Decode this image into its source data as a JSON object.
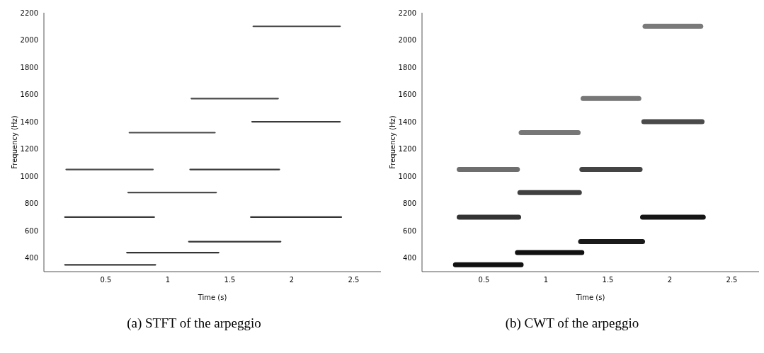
{
  "chart_data": [
    {
      "type": "line",
      "title": "(a) STFT of the arpeggio",
      "xlabel": "Time (s)",
      "ylabel": "Frequency (Hz)",
      "xlim": [
        0,
        2.72
      ],
      "ylim": [
        300,
        2200
      ],
      "xticks": [
        0.5,
        1,
        1.5,
        2,
        2.5
      ],
      "yticks": [
        400,
        600,
        800,
        1000,
        1200,
        1400,
        1600,
        1800,
        2000,
        2200
      ],
      "grid": false,
      "legend": false,
      "marker": "none",
      "line_style": "solid",
      "series": [
        {
          "color": "#3a3a3a",
          "x": [
            0.17,
            0.9
          ],
          "values": [
            350,
            350
          ]
        },
        {
          "color": "#3a3a3a",
          "x": [
            0.17,
            0.89
          ],
          "values": [
            700,
            700
          ]
        },
        {
          "color": "#4a4a4a",
          "x": [
            0.18,
            0.88
          ],
          "values": [
            1050,
            1050
          ]
        },
        {
          "color": "#333333",
          "x": [
            0.67,
            1.41
          ],
          "values": [
            440,
            440
          ]
        },
        {
          "color": "#3a3a3a",
          "x": [
            0.68,
            1.39
          ],
          "values": [
            880,
            880
          ]
        },
        {
          "color": "#4a4a4a",
          "x": [
            0.69,
            1.38
          ],
          "values": [
            1320,
            1320
          ]
        },
        {
          "color": "#333333",
          "x": [
            1.17,
            1.91
          ],
          "values": [
            520,
            520
          ]
        },
        {
          "color": "#3a3a3a",
          "x": [
            1.18,
            1.9
          ],
          "values": [
            1050,
            1050
          ]
        },
        {
          "color": "#4a4a4a",
          "x": [
            1.19,
            1.89
          ],
          "values": [
            1570,
            1570
          ]
        },
        {
          "color": "#333333",
          "x": [
            1.67,
            2.4
          ],
          "values": [
            700,
            700
          ]
        },
        {
          "color": "#3a3a3a",
          "x": [
            1.68,
            2.39
          ],
          "values": [
            1400,
            1400
          ]
        },
        {
          "color": "#4a4a4a",
          "x": [
            1.69,
            2.39
          ],
          "values": [
            2100,
            2100
          ]
        }
      ]
    },
    {
      "type": "line",
      "title": "(b) CWT of the arpeggio",
      "xlabel": "Time (s)",
      "ylabel": "Frequency (Hz)",
      "xlim": [
        0,
        2.72
      ],
      "ylim": [
        300,
        2200
      ],
      "xticks": [
        0.5,
        1,
        1.5,
        2,
        2.5
      ],
      "yticks": [
        400,
        600,
        800,
        1000,
        1200,
        1400,
        1600,
        1800,
        2000,
        2200
      ],
      "grid": false,
      "legend": false,
      "marker": "none",
      "line_style": "solid",
      "series": [
        {
          "color": "#111111",
          "x": [
            0.27,
            0.8
          ],
          "values": [
            350,
            350
          ]
        },
        {
          "color": "#333333",
          "x": [
            0.3,
            0.78
          ],
          "values": [
            700,
            700
          ]
        },
        {
          "color": "#6e6e6e",
          "x": [
            0.3,
            0.77
          ],
          "values": [
            1050,
            1050
          ]
        },
        {
          "color": "#111111",
          "x": [
            0.77,
            1.29
          ],
          "values": [
            440,
            440
          ]
        },
        {
          "color": "#404040",
          "x": [
            0.79,
            1.27
          ],
          "values": [
            880,
            880
          ]
        },
        {
          "color": "#777777",
          "x": [
            0.8,
            1.26
          ],
          "values": [
            1320,
            1320
          ]
        },
        {
          "color": "#1a1a1a",
          "x": [
            1.28,
            1.78
          ],
          "values": [
            520,
            520
          ]
        },
        {
          "color": "#444444",
          "x": [
            1.29,
            1.76
          ],
          "values": [
            1050,
            1050
          ]
        },
        {
          "color": "#777777",
          "x": [
            1.3,
            1.75
          ],
          "values": [
            1570,
            1570
          ]
        },
        {
          "color": "#151515",
          "x": [
            1.78,
            2.27
          ],
          "values": [
            700,
            700
          ]
        },
        {
          "color": "#4a4a4a",
          "x": [
            1.79,
            2.26
          ],
          "values": [
            1400,
            1400
          ]
        },
        {
          "color": "#7a7a7a",
          "x": [
            1.8,
            2.25
          ],
          "values": [
            2100,
            2100
          ]
        }
      ]
    }
  ]
}
